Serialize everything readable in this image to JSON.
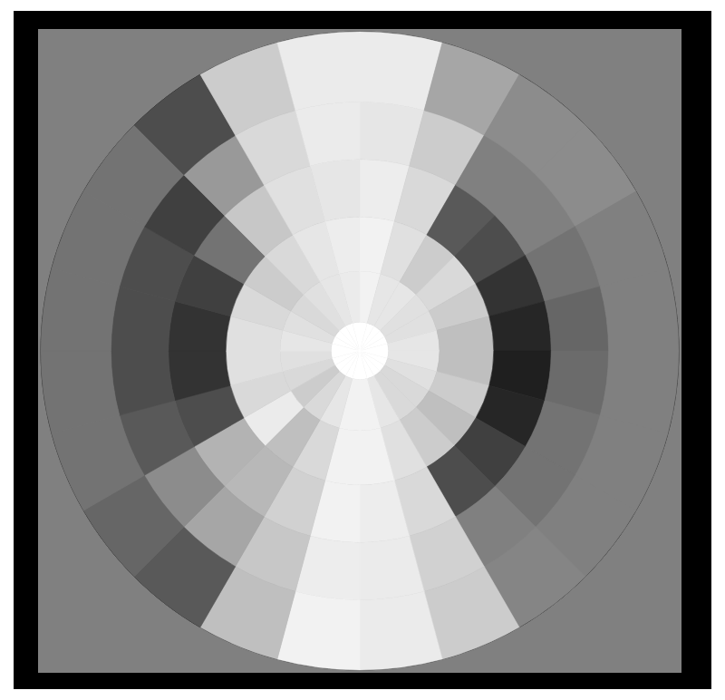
{
  "chart_data": {
    "type": "polar_heatmap",
    "angle_edges": [
      0,
      15,
      30,
      45,
      60,
      75,
      90,
      105,
      120,
      135,
      150,
      165,
      180,
      195,
      210,
      225,
      240,
      255,
      270,
      285,
      300,
      315,
      330,
      345,
      360
    ],
    "radius_edges": [
      0,
      0.09,
      0.25,
      0.42,
      0.6,
      0.78,
      1.0
    ],
    "cells": [
      [
        1,
        0.95,
        0.95,
        0.93,
        0.9,
        0.92
      ],
      [
        1,
        0.9,
        0.88,
        0.85,
        0.8,
        0.65
      ],
      [
        1,
        0.9,
        0.8,
        0.35,
        0.5,
        0.55
      ],
      [
        1,
        0.88,
        0.85,
        0.3,
        0.5,
        0.55
      ],
      [
        1,
        0.88,
        0.8,
        0.2,
        0.45,
        0.5
      ],
      [
        1,
        0.9,
        0.75,
        0.15,
        0.4,
        0.5
      ],
      [
        1,
        0.9,
        0.75,
        0.12,
        0.42,
        0.5
      ],
      [
        1,
        0.88,
        0.8,
        0.15,
        0.45,
        0.5
      ],
      [
        1,
        0.85,
        0.75,
        0.25,
        0.45,
        0.5
      ],
      [
        1,
        0.85,
        0.8,
        0.3,
        0.5,
        0.52
      ],
      [
        1,
        0.9,
        0.88,
        0.85,
        0.82,
        0.8
      ],
      [
        1,
        0.95,
        0.95,
        0.93,
        0.92,
        0.92
      ],
      [
        1,
        0.95,
        0.95,
        0.95,
        0.93,
        0.95
      ],
      [
        1,
        0.9,
        0.85,
        0.82,
        0.78,
        0.75
      ],
      [
        1,
        0.85,
        0.75,
        0.72,
        0.65,
        0.35
      ],
      [
        1,
        0.8,
        0.92,
        0.7,
        0.55,
        0.4
      ],
      [
        1,
        0.85,
        0.85,
        0.3,
        0.35,
        0.45
      ],
      [
        1,
        0.88,
        0.88,
        0.2,
        0.3,
        0.45
      ],
      [
        1,
        0.9,
        0.88,
        0.2,
        0.3,
        0.45
      ],
      [
        1,
        0.88,
        0.85,
        0.25,
        0.3,
        0.45
      ],
      [
        1,
        0.85,
        0.8,
        0.45,
        0.25,
        0.45
      ],
      [
        1,
        0.88,
        0.85,
        0.78,
        0.6,
        0.3
      ],
      [
        1,
        0.9,
        0.9,
        0.88,
        0.85,
        0.8
      ],
      [
        1,
        0.92,
        0.93,
        0.9,
        0.92,
        0.92
      ]
    ],
    "color_range": [
      0,
      1
    ],
    "tick_labels": false,
    "grid": false
  }
}
